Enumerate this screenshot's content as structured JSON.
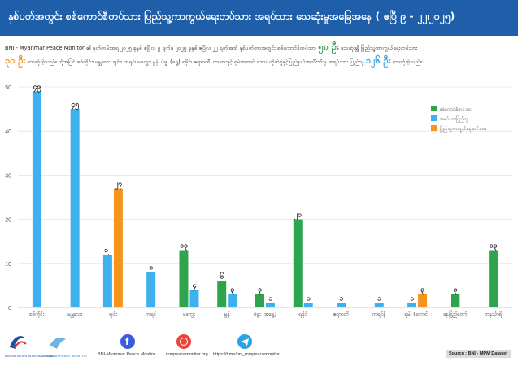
{
  "header": {
    "title": "နှစ်ပတ်အတွင်း စစ်ကောင်စီတပ်သား ပြည်သူ့ကာကွယ်ရေးတပ်သား အရပ်သား သေဆုံးမှုအခြေအနေ ( ဧပြီ ၉ - ၂၂၊၂၀၂၅)"
  },
  "intro": {
    "p1": "BNI - Myanmar Peace Monitor ၏ မှတ်တမ်းအရ ၂၀၂၅ ခုနှစ် ဧပြီလ ၉ ရက်မှ ၂၀၂၅ ခုနှစ် ဧပြီလ ၂၂ ရက်အထိ နှစ်ပတ်တာအတွင်း စစ်ကောင်စီတပ်သား",
    "n1": "၅၈ ဦး",
    "p2": "သေဆုံး၍ ပြည်သူ့ကာကွယ်ရေးတပ်သား",
    "n2": "၃၀ ဦး",
    "p3": "သေဆုံးခဲ့သည်။ ထို့အပြင် စစ်ကိုင်း၊ မန္တလေး၊ ချင်း၊ ကရင်၊ မကွေး၊ မွန်၊ ပဲခူး (ရှေ့) ရခိုင်၊ ဧရာဝတီ၊ ကယားနှင့် ရှမ်းတောင် ဒေသ တိုက်ပွဲနှင့်ပြည်နယ်အသီးသီးမှ အရပ်သား ပြည်သူ",
    "n3": "၁၂၆ ဦး",
    "p4": "သေဆုံးခဲ့သည်။"
  },
  "chart_data": {
    "type": "bar",
    "ylim": [
      0,
      50
    ],
    "yticks": [
      "0",
      "10",
      "20",
      "30",
      "40",
      "50"
    ],
    "categories": [
      "စစ်ကိုင်း",
      "မန္တလေး",
      "ချင်း",
      "ကရင်",
      "မကွေး",
      "မွန်",
      "ပဲခူး (အရှေ့)",
      "ရခိုင်",
      "ဧရာဝတီ",
      "ကရင်နီ",
      "ရှမ်း (တောင်)",
      "နေပြည်တော်",
      "တနင်္သာရီ"
    ],
    "series": [
      {
        "name": "စစ်ကောင်စီတပ်သား",
        "color": "#2ea44f",
        "values": [
          0,
          0,
          0,
          0,
          13,
          6,
          3,
          20,
          0,
          0,
          0,
          3,
          13
        ],
        "labels": [
          "",
          "",
          "",
          "",
          "၁၃",
          "၆",
          "၃",
          "၂၀",
          "",
          "",
          "",
          "၃",
          "၁၃"
        ]
      },
      {
        "name": "အရပ်သားပြည်သူ",
        "color": "#3db0ee",
        "values": [
          49,
          45,
          12,
          8,
          4,
          3,
          1,
          1,
          1,
          1,
          1,
          0,
          0
        ],
        "labels": [
          "၄၉",
          "၄၅",
          "၁၂",
          "၈",
          "၄",
          "၃",
          "၁",
          "၁",
          "၁",
          "၁",
          "၁",
          "",
          ""
        ]
      },
      {
        "name": "ပြည်သူ့ကာကွယ်ရေးတပ်သား",
        "color": "#f7941d",
        "values": [
          0,
          0,
          27,
          0,
          0,
          0,
          0,
          0,
          0,
          0,
          3,
          0,
          0
        ],
        "labels": [
          "",
          "",
          "၂၇",
          "",
          "",
          "",
          "",
          "",
          "",
          "",
          "၃",
          "",
          ""
        ]
      }
    ]
  },
  "footer": {
    "logo1": "BURMA NEWS INTERNATIONAL",
    "logo2": "MYANMAR PEACE MONITOR",
    "facebook": "BNI-Myanmar Peace Monitor",
    "web": "mmpeacemonitor.org",
    "telegram": "https://t.me/bni_mmpeacemonitor",
    "source": "Source : BNI - MPM Dataset",
    "colors": {
      "facebook": "#3b5bdb",
      "web": "#e8463c",
      "telegram": "#2aa3e0"
    }
  }
}
